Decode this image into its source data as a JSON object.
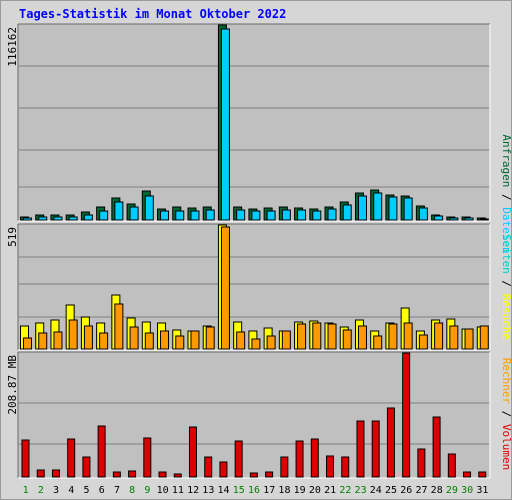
{
  "title": "Tages-Statistik im Monat Oktober 2022",
  "colors": {
    "background": "#d6d6d6",
    "plot_bg": "#c0c0c0",
    "title": "#0000ff",
    "anfragen": "#006633",
    "dateien": "#00ccff",
    "seiten": "#00cccc",
    "besuche": "#ffff00",
    "rechner": "#ff9900",
    "volumen": "#dd0000",
    "weekday_label": "#000000",
    "weekend_label": "#008000",
    "sep": "#000000",
    "grid": "#7f7f7f"
  },
  "chart_data": [
    {
      "type": "bar",
      "panel": "top",
      "max_label": "116162",
      "ylim": [
        0,
        116162
      ],
      "legend": [
        {
          "text": "Anfragen",
          "color": "#006633"
        },
        {
          "text": "Dateien",
          "color": "#00ccff"
        }
      ],
      "series": [
        {
          "name": "Anfragen",
          "values": [
            2000,
            2800,
            2900,
            3100,
            4500,
            7500,
            13000,
            9500,
            17000,
            6800,
            7500,
            7000,
            7500,
            116162,
            7500,
            6500,
            7000,
            7500,
            7200,
            6500,
            8000,
            11000,
            16000,
            18000,
            15000,
            14000,
            8500,
            3000,
            2000,
            1500,
            1200
          ]
        },
        {
          "name": "Dateien",
          "values": [
            1000,
            1600,
            1700,
            1800,
            3200,
            5500,
            11000,
            7800,
            14500,
            5300,
            5600,
            5600,
            6200,
            114000,
            6100,
            5200,
            5600,
            6000,
            5800,
            5200,
            6600,
            9000,
            14000,
            16000,
            13500,
            13000,
            7000,
            2200,
            1200,
            900,
            700
          ]
        }
      ]
    },
    {
      "type": "bar",
      "panel": "middle",
      "max_label": "519",
      "ylim": [
        0,
        519
      ],
      "legend": [
        {
          "text": "Seiten",
          "color": "#00cccc"
        },
        {
          "text": "Besuche",
          "color": "#ffff00"
        }
      ],
      "series": [
        {
          "name": "Seiten",
          "values": [
            0,
            0,
            0,
            0,
            0,
            0,
            0,
            0,
            0,
            0,
            0,
            0,
            0,
            0,
            0,
            0,
            0,
            0,
            0,
            0,
            0,
            0,
            0,
            0,
            0,
            0,
            0,
            0,
            0,
            0,
            0
          ]
        },
        {
          "name": "Besuche",
          "values": [
            98,
            108,
            120,
            185,
            133,
            108,
            226,
            128,
            112,
            108,
            80,
            77,
            98,
            519,
            114,
            77,
            86,
            77,
            112,
            116,
            108,
            94,
            120,
            77,
            108,
            172,
            77,
            120,
            124,
            83,
            94
          ]
        },
        {
          "name": "Rechner",
          "values": [
            47,
            65,
            70,
            120,
            98,
            65,
            187,
            91,
            65,
            77,
            54,
            74,
            90,
            510,
            70,
            40,
            54,
            74,
            104,
            108,
            104,
            80,
            98,
            54,
            104,
            110,
            60,
            108,
            98,
            83,
            96
          ]
        }
      ]
    },
    {
      "type": "bar",
      "panel": "bottom",
      "max_label": "208.87 MB",
      "ylim": [
        0,
        208.87
      ],
      "legend": [
        {
          "text": "Rechner",
          "color": "#ff9900"
        },
        {
          "text": "Volumen",
          "color": "#dd0000"
        }
      ],
      "series": [
        {
          "name": "Volumen",
          "values": [
            62,
            12,
            12,
            64,
            33,
            86,
            9,
            10,
            65,
            9,
            5,
            85,
            33,
            25,
            60,
            6,
            9,
            33,
            60,
            64,
            35,
            33,
            95,
            95,
            117,
            208.87,
            48,
            101,
            39,
            9,
            9
          ]
        }
      ]
    }
  ],
  "days": [
    {
      "label": "1",
      "weekend": true
    },
    {
      "label": "2",
      "weekend": true
    },
    {
      "label": "3",
      "weekend": false
    },
    {
      "label": "4",
      "weekend": false
    },
    {
      "label": "5",
      "weekend": false
    },
    {
      "label": "6",
      "weekend": false
    },
    {
      "label": "7",
      "weekend": false
    },
    {
      "label": "8",
      "weekend": true
    },
    {
      "label": "9",
      "weekend": true
    },
    {
      "label": "10",
      "weekend": false
    },
    {
      "label": "11",
      "weekend": false
    },
    {
      "label": "12",
      "weekend": false
    },
    {
      "label": "13",
      "weekend": false
    },
    {
      "label": "14",
      "weekend": false
    },
    {
      "label": "15",
      "weekend": true
    },
    {
      "label": "16",
      "weekend": true
    },
    {
      "label": "17",
      "weekend": false
    },
    {
      "label": "18",
      "weekend": false
    },
    {
      "label": "19",
      "weekend": false
    },
    {
      "label": "20",
      "weekend": false
    },
    {
      "label": "21",
      "weekend": false
    },
    {
      "label": "22",
      "weekend": true
    },
    {
      "label": "23",
      "weekend": true
    },
    {
      "label": "24",
      "weekend": false
    },
    {
      "label": "25",
      "weekend": false
    },
    {
      "label": "26",
      "weekend": false
    },
    {
      "label": "27",
      "weekend": false
    },
    {
      "label": "28",
      "weekend": false
    },
    {
      "label": "29",
      "weekend": true
    },
    {
      "label": "30",
      "weekend": true
    },
    {
      "label": "31",
      "weekend": false
    }
  ]
}
